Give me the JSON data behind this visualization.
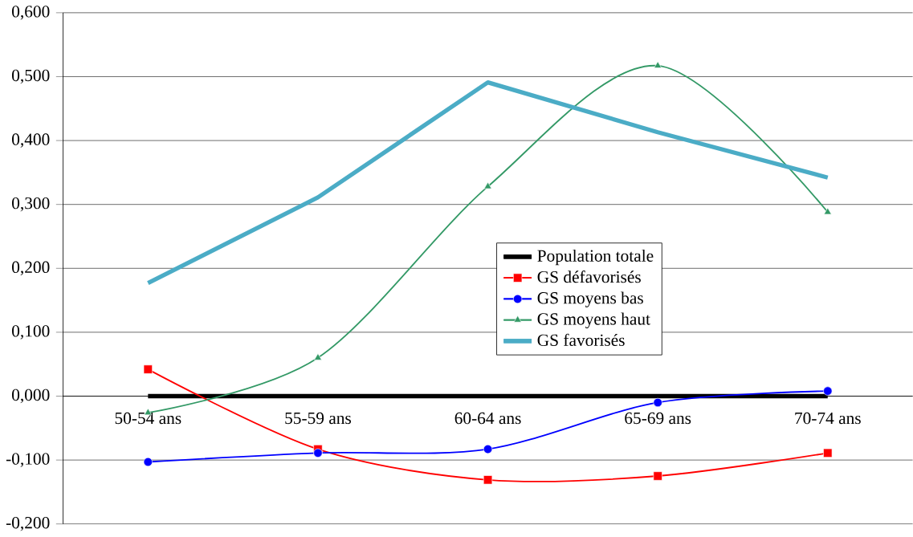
{
  "chart_data": {
    "type": "line",
    "categories": [
      "50-54 ans",
      "55-59 ans",
      "60-64 ans",
      "65-69 ans",
      "70-74 ans"
    ],
    "series": [
      {
        "name": "Population totale",
        "color": "#000000",
        "marker": "none",
        "values": [
          0,
          0,
          0,
          0,
          0
        ]
      },
      {
        "name": "GS défavorisés",
        "color": "#ff0000",
        "marker": "square",
        "values": [
          0.042,
          -0.083,
          -0.131,
          -0.125,
          -0.089
        ]
      },
      {
        "name": "GS moyens bas",
        "color": "#0000ff",
        "marker": "circle",
        "values": [
          -0.103,
          -0.089,
          -0.083,
          -0.01,
          0.008
        ]
      },
      {
        "name": "GS moyens haut",
        "color": "#339966",
        "marker": "triangle",
        "values": [
          -0.026,
          0.06,
          0.328,
          0.517,
          0.288
        ]
      },
      {
        "name": "GS favorisés",
        "color": "#4bacc6",
        "marker": "none",
        "values": [
          0.177,
          0.311,
          0.491,
          0.413,
          0.342
        ]
      }
    ],
    "ylim": [
      -0.2,
      0.6
    ],
    "yticks": [
      {
        "value": -0.2,
        "label": "-0,200"
      },
      {
        "value": -0.1,
        "label": "-0,100"
      },
      {
        "value": 0,
        "label": "0,000"
      },
      {
        "value": 0.1,
        "label": "0,100"
      },
      {
        "value": 0.2,
        "label": "0,200"
      },
      {
        "value": 0.3,
        "label": "0,300"
      },
      {
        "value": 0.4,
        "label": "0,400"
      },
      {
        "value": 0.5,
        "label": "0,500"
      },
      {
        "value": 0.6,
        "label": "0,600"
      }
    ],
    "grid": "y",
    "legend": "center"
  }
}
